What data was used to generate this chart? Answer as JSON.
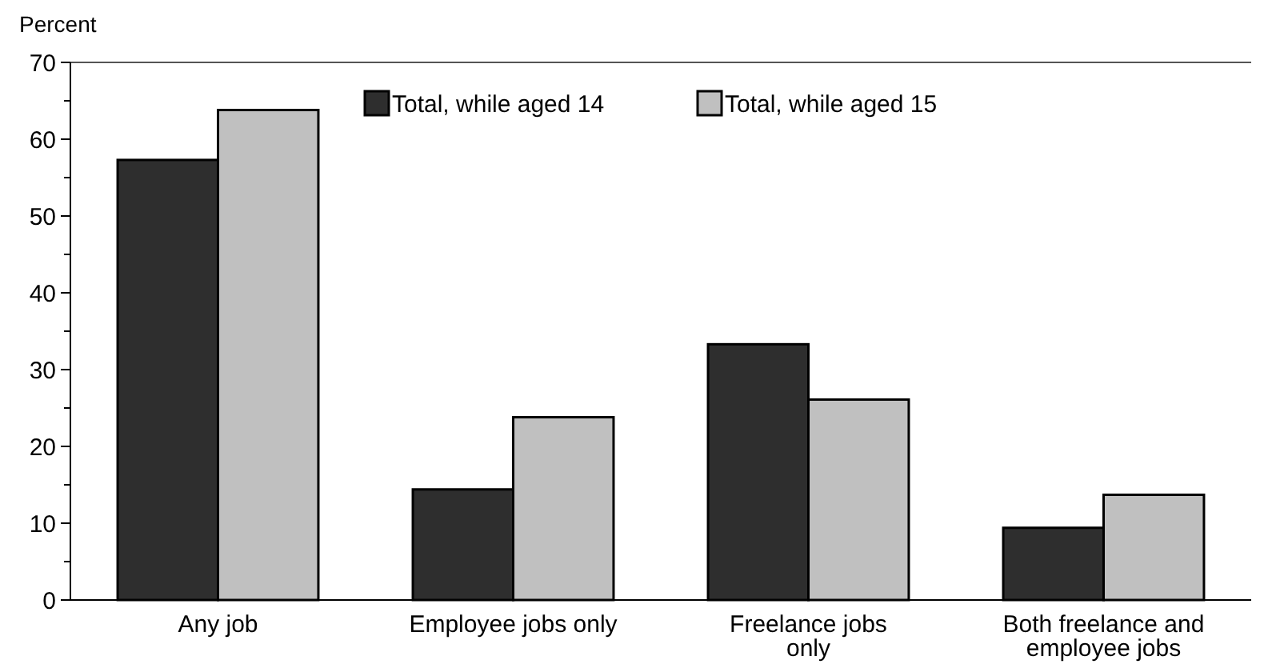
{
  "chart_data": {
    "type": "bar",
    "ylabel": "Percent",
    "categories": [
      "Any job",
      "Employee jobs only",
      "Freelance jobs only",
      "Both freelance and employee jobs"
    ],
    "series": [
      {
        "name": "Total, while aged 14",
        "color": "#2e2e2e",
        "values": [
          57.3,
          14.4,
          33.3,
          9.4
        ]
      },
      {
        "name": "Total, while aged 15",
        "color": "#c0c0c0",
        "values": [
          63.8,
          23.8,
          26.1,
          13.7
        ]
      }
    ],
    "ylim": [
      0,
      70
    ],
    "yticks": [
      0,
      {
        "value": 5,
        "label": null
      },
      10,
      {
        "value": 15,
        "label": null
      },
      20,
      {
        "value": 25,
        "label": null
      },
      30,
      {
        "value": 35,
        "label": null
      },
      40,
      {
        "value": 45,
        "label": null
      },
      50,
      {
        "value": 55,
        "label": null
      },
      60,
      {
        "value": 65,
        "label": null
      },
      70
    ],
    "grid": false,
    "legend": "top"
  }
}
